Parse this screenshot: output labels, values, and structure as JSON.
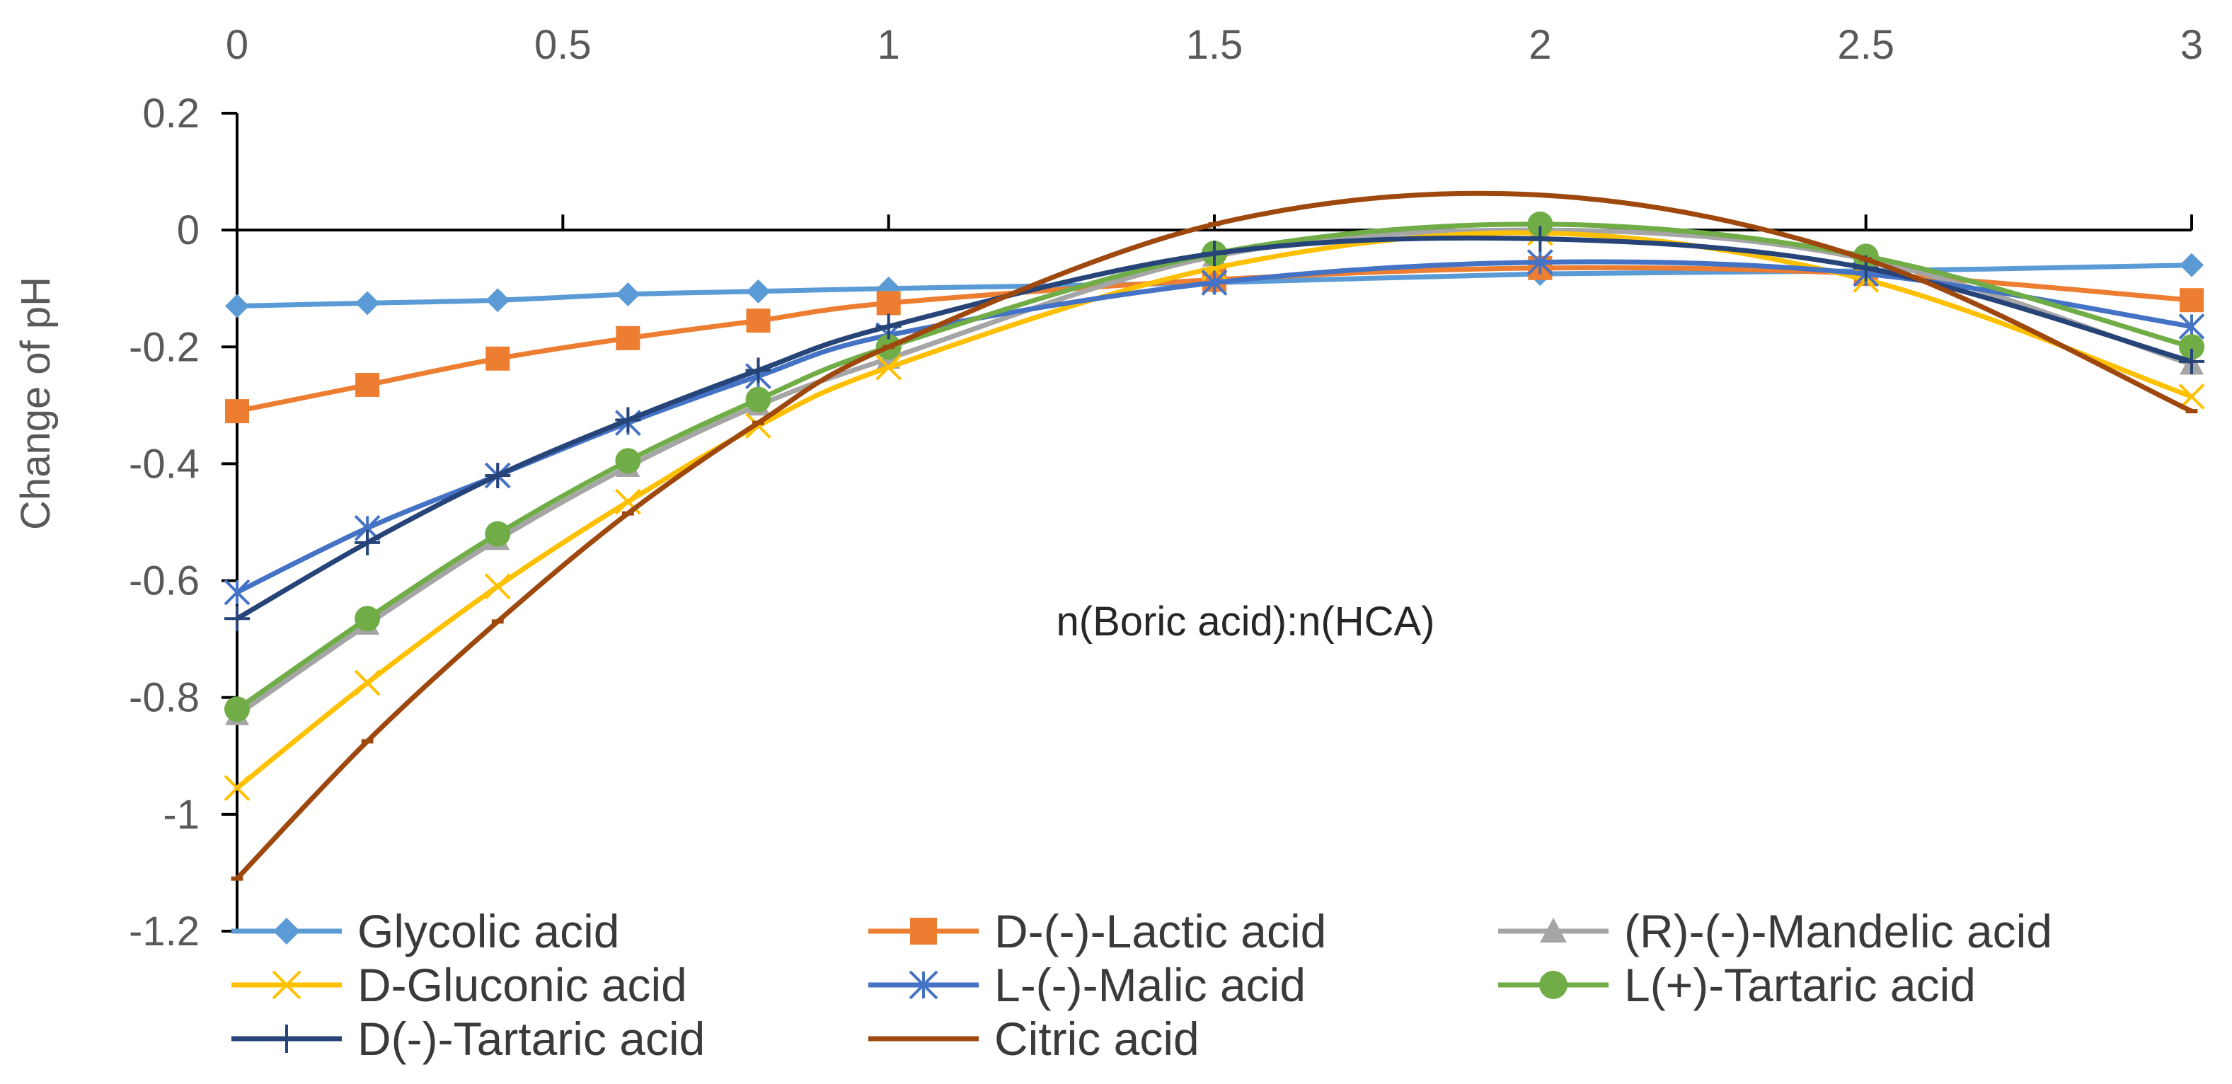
{
  "chart_data": {
    "type": "line",
    "title": "",
    "xlabel": "n(Boric acid):n(HCA)",
    "ylabel": "Change of pH",
    "x_position": "top",
    "xlim": [
      0,
      3
    ],
    "ylim": [
      -1.2,
      0.2
    ],
    "xticks": [
      0,
      0.5,
      1,
      1.5,
      2,
      2.5,
      3
    ],
    "xtick_labels": [
      "0",
      "0.5",
      "1",
      "1.5",
      "2",
      "2.5",
      "3"
    ],
    "yticks": [
      0.2,
      0,
      -0.2,
      -0.4,
      -0.6,
      -0.8,
      -1,
      -1.2
    ],
    "ytick_labels": [
      "0.2",
      "0",
      "-0.2",
      "-0.4",
      "-0.6",
      "-0.8",
      "-1",
      "-1.2"
    ],
    "grid": false,
    "legend_position": "bottom",
    "series": [
      {
        "name": "Glycolic acid",
        "color": "#5B9BD5",
        "marker": "diamond",
        "x": [
          0,
          0.2,
          0.4,
          0.6,
          0.8,
          1,
          1.5,
          2,
          2.5,
          3
        ],
        "y": [
          -0.13,
          -0.125,
          -0.12,
          -0.11,
          -0.105,
          -0.1,
          -0.09,
          -0.075,
          -0.07,
          -0.06
        ]
      },
      {
        "name": "D-(-)-Lactic acid",
        "color": "#ED7D31",
        "marker": "square",
        "x": [
          0,
          0.2,
          0.4,
          0.6,
          0.8,
          1,
          1.5,
          2,
          2.5,
          3
        ],
        "y": [
          -0.31,
          -0.265,
          -0.22,
          -0.185,
          -0.155,
          -0.125,
          -0.085,
          -0.065,
          -0.075,
          -0.12
        ]
      },
      {
        "name": "(R)-(-)-Mandelic acid",
        "color": "#A5A5A5",
        "marker": "triangle",
        "x": [
          0,
          0.2,
          0.4,
          0.6,
          0.8,
          1,
          1.5,
          2,
          2.5,
          3
        ],
        "y": [
          -0.83,
          -0.675,
          -0.53,
          -0.405,
          -0.3,
          -0.22,
          -0.045,
          0.0,
          -0.05,
          -0.23
        ]
      },
      {
        "name": "D-Gluconic acid",
        "color": "#FFC000",
        "marker": "x",
        "x": [
          0,
          0.2,
          0.4,
          0.6,
          0.8,
          1,
          1.5,
          2,
          2.5,
          3
        ],
        "y": [
          -0.955,
          -0.775,
          -0.61,
          -0.465,
          -0.335,
          -0.235,
          -0.065,
          -0.005,
          -0.085,
          -0.285
        ]
      },
      {
        "name": "L-(-)-Malic acid",
        "color": "#4472C4",
        "marker": "asterisk",
        "x": [
          0,
          0.2,
          0.4,
          0.6,
          0.8,
          1,
          1.5,
          2,
          2.5,
          3
        ],
        "y": [
          -0.62,
          -0.51,
          -0.42,
          -0.33,
          -0.25,
          -0.18,
          -0.09,
          -0.055,
          -0.075,
          -0.165
        ]
      },
      {
        "name": "L(+)-Tartaric acid",
        "color": "#70AD47",
        "marker": "circle",
        "x": [
          0,
          0.2,
          0.4,
          0.6,
          0.8,
          1,
          1.5,
          2,
          2.5,
          3
        ],
        "y": [
          -0.82,
          -0.665,
          -0.52,
          -0.395,
          -0.29,
          -0.2,
          -0.04,
          0.01,
          -0.045,
          -0.2
        ]
      },
      {
        "name": "D(-)-Tartaric acid",
        "color": "#264478",
        "marker": "plus",
        "x": [
          0,
          0.2,
          0.4,
          0.6,
          0.8,
          1,
          1.5,
          2,
          2.5,
          3
        ],
        "y": [
          -0.665,
          -0.535,
          -0.42,
          -0.325,
          -0.24,
          -0.165,
          -0.04,
          -0.015,
          -0.065,
          -0.225
        ]
      },
      {
        "name": "Citric acid",
        "color": "#9E480E",
        "marker": "dash",
        "x": [
          0,
          0.2,
          0.4,
          0.6,
          0.8,
          1,
          1.5,
          2,
          2.5,
          3
        ],
        "y": [
          -1.11,
          -0.875,
          -0.67,
          -0.485,
          -0.33,
          -0.2,
          0.01,
          0.06,
          -0.05,
          -0.31
        ]
      }
    ]
  }
}
